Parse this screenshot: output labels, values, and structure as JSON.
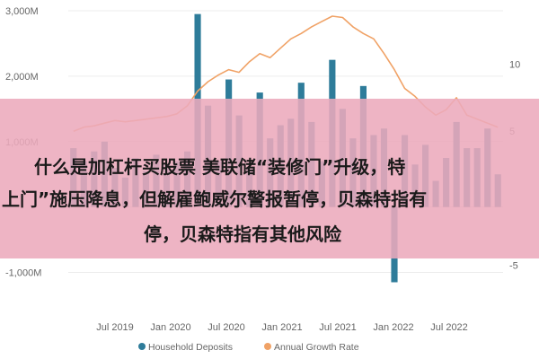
{
  "chart_data": {
    "type": "bar",
    "x_ticks": [
      "Jul 2019",
      "Jan 2020",
      "Jul 2020",
      "Jan 2021",
      "Jul 2021",
      "Jan 2022",
      "Jul 2022"
    ],
    "y_left_ticks": [
      "3,000M",
      "2,000M",
      "1,000M",
      "-1,000M"
    ],
    "y_left_lim": [
      -1500,
      3000
    ],
    "y_right_ticks": [
      "10",
      "5",
      "-5"
    ],
    "y_right_lim": [
      -8,
      14
    ],
    "legend_position": "bottom",
    "series": [
      {
        "name": "Household Deposits",
        "kind": "bar",
        "color": "#2e7c9a",
        "values": [
          900,
          700,
          850,
          1000,
          600,
          450,
          750,
          550,
          800,
          650,
          700,
          850,
          2950,
          1550,
          700,
          1950,
          1400,
          600,
          1750,
          1050,
          1250,
          1350,
          1900,
          1300,
          700,
          2250,
          1500,
          1050,
          1850,
          1100,
          1200,
          -1150,
          1100,
          650,
          950,
          400,
          750,
          1300,
          900,
          900,
          1200,
          500
        ]
      },
      {
        "name": "Annual Growth Rate",
        "kind": "line",
        "color": "#f0a266",
        "values": [
          5.0,
          5.3,
          5.4,
          5.6,
          5.8,
          5.7,
          5.8,
          5.9,
          6.0,
          6.1,
          6.3,
          6.9,
          8.0,
          8.7,
          9.2,
          9.6,
          9.4,
          10.2,
          10.8,
          10.5,
          11.2,
          11.9,
          12.3,
          12.8,
          13.2,
          13.6,
          13.5,
          12.8,
          12.3,
          11.9,
          10.8,
          9.6,
          8.2,
          7.6,
          6.8,
          6.2,
          6.6,
          7.5,
          6.2,
          5.9,
          5.6,
          5.3
        ]
      }
    ]
  },
  "overlay": {
    "line1": "什么是加杠杆买股票 美联储“装修门”升级，特",
    "line2": "上门”施压降息，但解雇鲍威尔警报暂停，贝森特指有",
    "line3": "停，贝森特指有其他风险"
  }
}
